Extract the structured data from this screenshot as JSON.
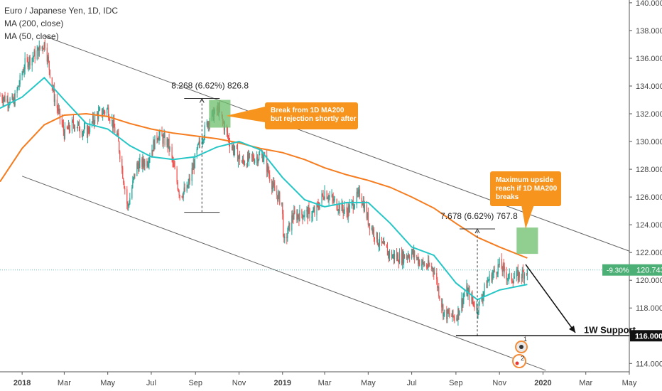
{
  "header": {
    "title": "Euro / Japanese Yen, 1D, IDC",
    "indicators": [
      "MA (200, close)",
      "MA (50, close)"
    ]
  },
  "chart_data": {
    "type": "candlestick",
    "title": "Euro / Japanese Yen, 1D, IDC",
    "x_ticks": [
      "2018",
      "Mar",
      "May",
      "Jul",
      "Sep",
      "Nov",
      "2019",
      "Mar",
      "May",
      "Jul",
      "Sep",
      "Nov",
      "2020",
      "Mar",
      "May"
    ],
    "y_ticks": [
      "140.000",
      "138.000",
      "136.000",
      "134.000",
      "132.000",
      "130.000",
      "128.000",
      "126.000",
      "124.000",
      "122.000",
      "120.000",
      "118.000",
      "116.000",
      "114.000"
    ],
    "ylim": [
      113.4,
      140.2
    ],
    "xlim": [
      "2017-12-01",
      "2020-05-01"
    ],
    "current_price": {
      "label": "120.743",
      "change": "-9.30%",
      "value": 120.743
    },
    "support": {
      "label": "116.000",
      "value": 116.0,
      "name": "1W Support"
    },
    "price_path": [
      [
        "2017-12-01",
        133.3
      ],
      [
        "2017-12-20",
        132.8
      ],
      [
        "2018-01-05",
        135.6
      ],
      [
        "2018-01-20",
        136.3
      ],
      [
        "2018-02-02",
        137.1
      ],
      [
        "2018-02-15",
        133.2
      ],
      [
        "2018-03-01",
        130.6
      ],
      [
        "2018-03-15",
        131.3
      ],
      [
        "2018-04-01",
        130.6
      ],
      [
        "2018-04-15",
        131.9
      ],
      [
        "2018-05-01",
        132.3
      ],
      [
        "2018-05-15",
        130.2
      ],
      [
        "2018-05-29",
        125.2
      ],
      [
        "2018-06-10",
        128.2
      ],
      [
        "2018-06-25",
        128.6
      ],
      [
        "2018-07-10",
        130.5
      ],
      [
        "2018-07-25",
        129.8
      ],
      [
        "2018-08-10",
        126.2
      ],
      [
        "2018-08-20",
        126.5
      ],
      [
        "2018-09-05",
        129.6
      ],
      [
        "2018-09-20",
        131.6
      ],
      [
        "2018-10-03",
        132.3
      ],
      [
        "2018-10-20",
        129.8
      ],
      [
        "2018-11-05",
        128.5
      ],
      [
        "2018-11-20",
        128.8
      ],
      [
        "2018-12-05",
        129.0
      ],
      [
        "2018-12-20",
        126.5
      ],
      [
        "2018-12-31",
        125.6
      ],
      [
        "2019-01-03",
        122.6
      ],
      [
        "2019-01-15",
        124.6
      ],
      [
        "2019-02-01",
        124.8
      ],
      [
        "2019-02-15",
        124.8
      ],
      [
        "2019-03-01",
        126.4
      ],
      [
        "2019-03-15",
        125.6
      ],
      [
        "2019-04-01",
        124.9
      ],
      [
        "2019-04-20",
        126.3
      ],
      [
        "2019-05-01",
        124.3
      ],
      [
        "2019-05-15",
        122.8
      ],
      [
        "2019-06-01",
        121.8
      ],
      [
        "2019-06-15",
        121.6
      ],
      [
        "2019-07-01",
        122.0
      ],
      [
        "2019-07-15",
        121.2
      ],
      [
        "2019-08-01",
        120.8
      ],
      [
        "2019-08-15",
        117.6
      ],
      [
        "2019-09-01",
        117.3
      ],
      [
        "2019-09-15",
        119.3
      ],
      [
        "2019-10-01",
        117.9
      ],
      [
        "2019-10-15",
        119.9
      ],
      [
        "2019-11-01",
        121.1
      ],
      [
        "2019-11-15",
        120.1
      ],
      [
        "2019-12-01",
        120.4
      ],
      [
        "2019-12-10",
        120.743
      ]
    ],
    "series": [
      {
        "name": "MA (200, close)",
        "color": "#f57c1f",
        "values": [
          [
            "2017-12-01",
            127.1
          ],
          [
            "2018-01-01",
            129.5
          ],
          [
            "2018-02-01",
            131.2
          ],
          [
            "2018-03-01",
            131.9
          ],
          [
            "2018-04-01",
            132.0
          ],
          [
            "2018-05-01",
            131.8
          ],
          [
            "2018-06-01",
            131.3
          ],
          [
            "2018-07-01",
            130.9
          ],
          [
            "2018-08-01",
            130.6
          ],
          [
            "2018-09-01",
            130.4
          ],
          [
            "2018-10-01",
            130.2
          ],
          [
            "2018-11-01",
            129.9
          ],
          [
            "2018-12-01",
            129.5
          ],
          [
            "2019-01-01",
            129.2
          ],
          [
            "2019-02-01",
            128.7
          ],
          [
            "2019-03-01",
            128.1
          ],
          [
            "2019-04-01",
            127.6
          ],
          [
            "2019-05-01",
            127.2
          ],
          [
            "2019-06-01",
            126.7
          ],
          [
            "2019-07-01",
            126.0
          ],
          [
            "2019-08-01",
            125.2
          ],
          [
            "2019-09-01",
            124.1
          ],
          [
            "2019-10-01",
            123.1
          ],
          [
            "2019-11-01",
            122.4
          ],
          [
            "2019-12-10",
            121.6
          ]
        ]
      },
      {
        "name": "MA (50, close)",
        "color": "#26c6c6",
        "values": [
          [
            "2017-12-01",
            132.4
          ],
          [
            "2018-01-01",
            133.2
          ],
          [
            "2018-02-01",
            134.6
          ],
          [
            "2018-03-01",
            133.0
          ],
          [
            "2018-04-01",
            131.3
          ],
          [
            "2018-05-01",
            130.9
          ],
          [
            "2018-06-01",
            129.7
          ],
          [
            "2018-07-01",
            128.9
          ],
          [
            "2018-08-01",
            128.7
          ],
          [
            "2018-09-01",
            128.9
          ],
          [
            "2018-10-01",
            129.6
          ],
          [
            "2018-11-01",
            130.0
          ],
          [
            "2018-12-01",
            129.4
          ],
          [
            "2019-01-01",
            127.4
          ],
          [
            "2019-02-01",
            125.8
          ],
          [
            "2019-03-01",
            125.3
          ],
          [
            "2019-04-01",
            125.6
          ],
          [
            "2019-05-01",
            125.6
          ],
          [
            "2019-06-01",
            124.1
          ],
          [
            "2019-07-01",
            122.4
          ],
          [
            "2019-08-01",
            121.8
          ],
          [
            "2019-09-01",
            119.8
          ],
          [
            "2019-10-01",
            118.6
          ],
          [
            "2019-11-01",
            119.3
          ],
          [
            "2019-12-10",
            119.7
          ]
        ]
      }
    ],
    "channel_lines": [
      {
        "from": [
          "2018-02-01",
          137.6
        ],
        "to": [
          "2020-05-01",
          122.1
        ]
      },
      {
        "from": [
          "2018-01-01",
          127.5
        ],
        "to": [
          "2020-01-05",
          113.5
        ]
      }
    ],
    "measurements": [
      {
        "label": "8.268 (6.62%) 826.8",
        "x": "2018-09-10",
        "from": 124.9,
        "to": 133.1
      },
      {
        "label": "7.678 (6.62%) 767.8",
        "x": "2019-10-01",
        "from": 116.0,
        "to": 123.7
      }
    ],
    "annotations": [
      {
        "text": [
          "Break from 1D MA200",
          "but rejection shortly after"
        ]
      },
      {
        "text": [
          "Maximum upside",
          "reach  if 1D MA200",
          "breaks"
        ]
      }
    ],
    "zones": [
      {
        "from_date": "2018-09-20",
        "to_date": "2018-10-20",
        "from": 131.0,
        "to": 133.0
      },
      {
        "from_date": "2019-11-25",
        "to_date": "2019-12-25",
        "from": 121.9,
        "to": 123.8
      }
    ],
    "markers": [
      "1",
      "2"
    ],
    "grid": false
  }
}
